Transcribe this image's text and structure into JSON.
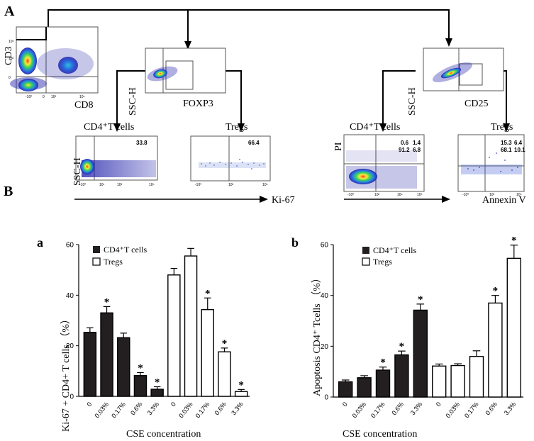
{
  "panels": {
    "A": "A",
    "B": "B",
    "a": "a",
    "b": "b"
  },
  "flow": {
    "cd3": "CD3",
    "cd8": "CD8",
    "ssc": "SSC-H",
    "foxp3": "FOXP3",
    "cd25": "CD25",
    "cd4_left": "CD4⁺T cells",
    "tregs_left": "Tregs",
    "cd4_right": "CD4⁺T cells",
    "tregs_right": "Tregs",
    "ki67_cd4_value": "33.8",
    "ki67_treg_value": "66.4",
    "ki67_axis": "Ki-67",
    "pi": "PI",
    "annexin": "Annexin V",
    "ssc_ki67": "SSC-H",
    "apo_cd4_q": [
      "0.6",
      "1.4",
      "91.2",
      "6.8"
    ],
    "apo_treg_q": [
      "15.3",
      "6.4",
      "68.1",
      "10.1"
    ],
    "tick_low": "-10⁰",
    "tick_0": "0",
    "tick_1": "10¹",
    "tick_2": "10²",
    "tick_3": "10³",
    "tick_4": "10⁴",
    "tick_5": "10⁵"
  },
  "legend": {
    "cd4": "CD4⁺T cells",
    "tregs": "Tregs"
  },
  "colors": {
    "cd4_bar": "#231f20",
    "treg_bar": "#ffffff",
    "dense": "#1a1aa8",
    "sparse": "#3a5ad0"
  },
  "significance_mark": "*",
  "chart_data": [
    {
      "type": "bar",
      "title": "",
      "xlabel": "CSE concentration",
      "ylabel": "Ki-67 + CD4+ T cells （%）",
      "ylim": [
        0,
        60
      ],
      "yticks": [
        "0",
        "20",
        "40",
        "60"
      ],
      "categories": [
        "0",
        "0.03%",
        "0.17%",
        "0.6%",
        "3.3%"
      ],
      "series": [
        {
          "name": "CD4⁺T cells",
          "values": [
            25.3,
            33,
            23.2,
            8.2,
            2.8
          ],
          "errors": [
            1.8,
            2.5,
            1.8,
            1.2,
            1
          ],
          "significant": [
            false,
            true,
            false,
            true,
            true
          ]
        },
        {
          "name": "Tregs",
          "values": [
            48,
            55.5,
            34.3,
            17.6,
            1.9
          ],
          "errors": [
            2.6,
            3,
            4.6,
            1.5,
            0.8
          ],
          "significant": [
            false,
            false,
            true,
            true,
            true
          ]
        }
      ]
    },
    {
      "type": "bar",
      "title": "",
      "xlabel": "CSE concentration",
      "ylabel": "Apoptosis CD4⁺ Tcells （%）",
      "ylim": [
        0,
        60
      ],
      "yticks": [
        "0",
        "20",
        "40",
        "60"
      ],
      "categories": [
        "0",
        "0.03%",
        "0.17%",
        "0.6%",
        "3.3%"
      ],
      "series": [
        {
          "name": "CD4⁺T cells",
          "values": [
            6,
            7.6,
            10.6,
            16.6,
            34.2
          ],
          "errors": [
            0.7,
            0.8,
            1.2,
            1.5,
            2.4
          ],
          "significant": [
            false,
            false,
            true,
            true,
            true
          ]
        },
        {
          "name": "Tregs",
          "values": [
            12.2,
            12.4,
            16,
            37,
            54.6
          ],
          "errors": [
            0.8,
            0.7,
            2.2,
            3,
            5.2
          ],
          "significant": [
            false,
            false,
            false,
            true,
            true
          ]
        }
      ]
    }
  ]
}
